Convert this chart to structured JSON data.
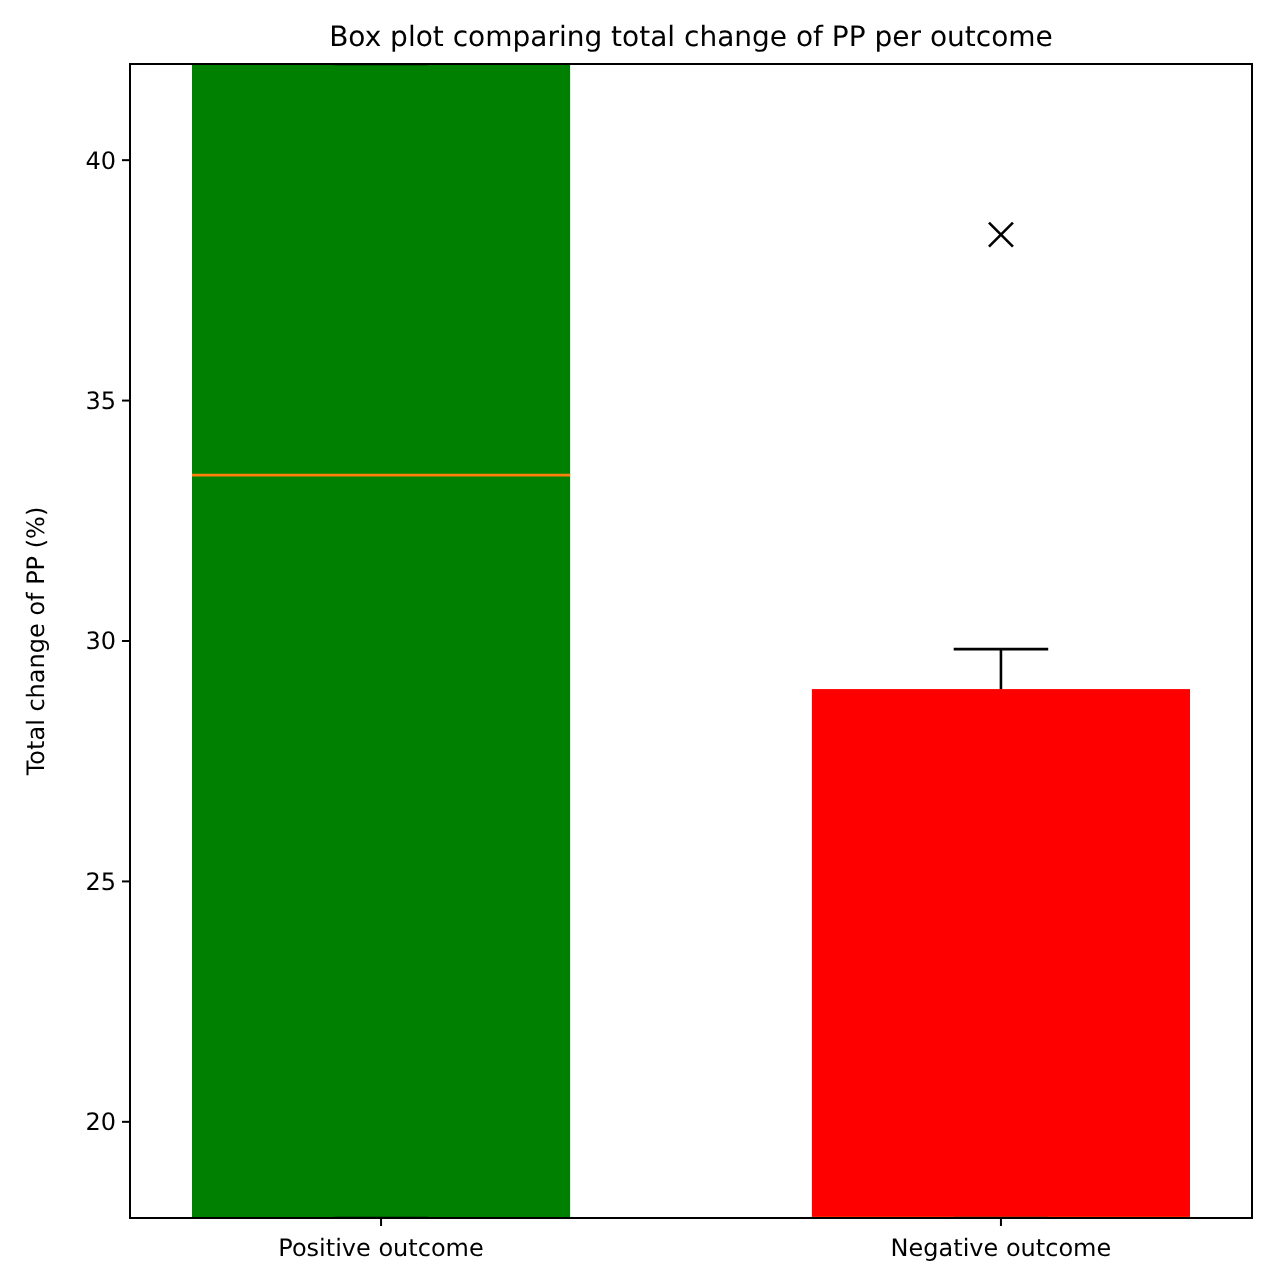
{
  "chart_data": {
    "type": "box",
    "title": "Box plot comparing total change of PP per outcome",
    "ylabel": "Total change of PP (%)",
    "categories": [
      "Positive outcome",
      "Negative outcome"
    ],
    "colors": [
      "#008000",
      "#ff0000"
    ],
    "marker": "cross",
    "ylim": [
      18,
      42
    ],
    "yticks": [
      20,
      25,
      30,
      35,
      40
    ],
    "grid": false,
    "boxes": [
      {
        "low": 18,
        "q1": 18,
        "median": 33.45,
        "q3": 42,
        "high": 42
      },
      {
        "low": 18,
        "q1": 18,
        "median": 18,
        "q3": 29.0,
        "high": 29.83,
        "outliers": [
          38.45
        ]
      }
    ]
  }
}
